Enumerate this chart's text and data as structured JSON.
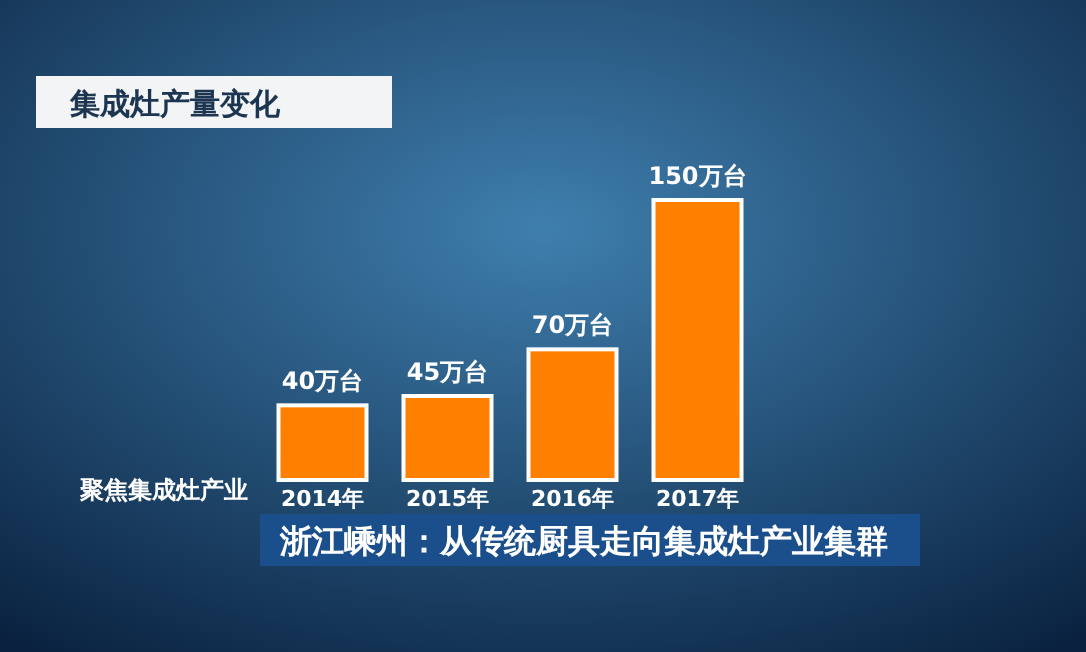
{
  "chart_data": {
    "type": "bar",
    "title": "集成灶产量变化",
    "categories": [
      "2014年",
      "2015年",
      "2016年",
      "2017年"
    ],
    "values": [
      40,
      45,
      70,
      150
    ],
    "value_labels": [
      "40万台",
      "45万台",
      "70万台",
      "150万台"
    ],
    "color": "#ff7f00",
    "grid": false,
    "annotations": [
      "聚焦集成灶产业",
      "浙江嵊州：从传统厨具走向集成灶产业集群"
    ]
  }
}
